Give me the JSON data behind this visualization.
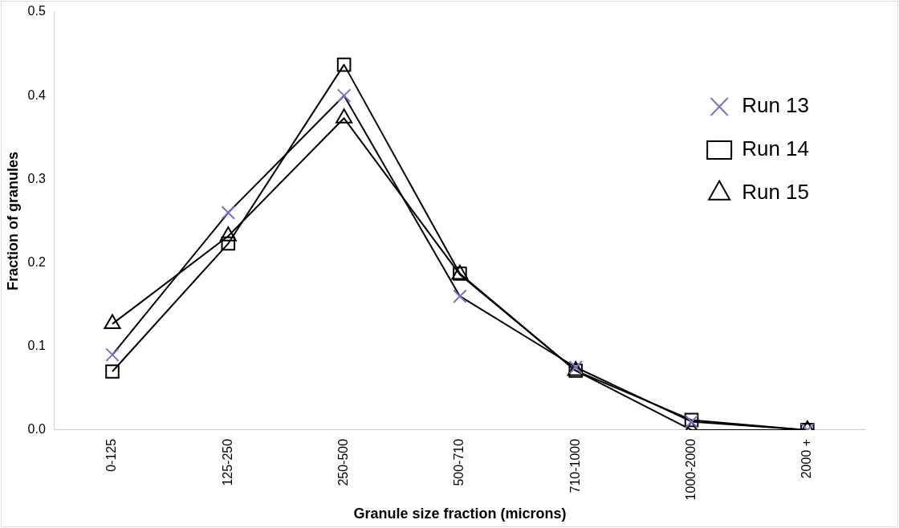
{
  "chart_data": {
    "type": "line",
    "xlabel": "Granule size fraction (microns)",
    "ylabel": "Fraction of granules",
    "categories": [
      "0-125",
      "125-250",
      "250-500",
      "500-710",
      "710-1000",
      "1000-2000",
      "2000 +"
    ],
    "ylim": [
      0,
      0.5
    ],
    "yticks": [
      {
        "value": 0,
        "label": "0.0"
      },
      {
        "value": 0.1,
        "label": "0.1"
      },
      {
        "value": 0.2,
        "label": "0.2"
      },
      {
        "value": 0.3,
        "label": "0.3"
      },
      {
        "value": 0.4,
        "label": "0.4"
      },
      {
        "value": 0.5,
        "label": "0.5"
      }
    ],
    "grid": false,
    "legend": "top right",
    "series": [
      {
        "name": "Run 13",
        "color": "#7074d0",
        "marker": "cross",
        "values": [
          0.09,
          0.26,
          0.4,
          0.16,
          0.075,
          0.01,
          0
        ]
      },
      {
        "name": "Run 14",
        "color": "#000000",
        "marker": "square",
        "values": [
          0.07,
          0.223,
          0.437,
          0.187,
          0.071,
          0.012,
          0
        ]
      },
      {
        "name": "Run 15",
        "color": "#000000",
        "marker": "triangle",
        "values": [
          0.127,
          0.232,
          0.373,
          0.186,
          0.071,
          0,
          0
        ]
      }
    ]
  }
}
